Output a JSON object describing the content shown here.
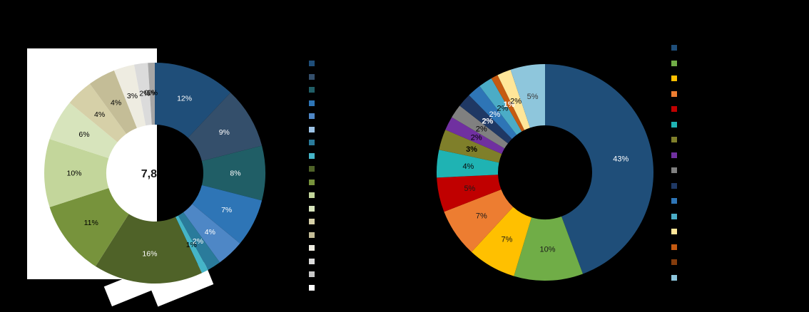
{
  "page": {
    "background": "#000000"
  },
  "chart_data": [
    {
      "type": "pie",
      "subtype": "donut",
      "unit": "percent",
      "values": [
        12,
        9,
        8,
        7,
        4,
        2,
        1,
        16,
        11,
        10,
        6,
        4,
        4,
        3,
        2,
        0,
        1
      ],
      "percent_labels": [
        "12%",
        "9%",
        "8%",
        "7%",
        "4%",
        "2%",
        "1%",
        "16%",
        "11%",
        "10%",
        "6%",
        "4%",
        "4%",
        "3%",
        "2%",
        "0%",
        "1%"
      ],
      "colors": [
        "#1F4E79",
        "#344F6B",
        "#205E66",
        "#2E75B6",
        "#4E87C6",
        "#2A7B9B",
        "#45B5C8",
        "#4F6228",
        "#77933C",
        "#C3D69B",
        "#D7E4BC",
        "#D6D0A8",
        "#C4BD97",
        "#EEECE1",
        "#DBDBDB",
        "#C9C9C9",
        "#A6A6A6"
      ],
      "label_colors": [
        "#FFFFFF",
        "#FFFFFF",
        "#FFFFFF",
        "#FFFFFF",
        "#FFFFFF",
        "#FFFFFF",
        "#000000",
        "#FFFFFF",
        "#000000",
        "#000000",
        "#000000",
        "#000000",
        "#000000",
        "#000000",
        "#000000",
        "#000000",
        "#000000"
      ],
      "label_bold": [
        false,
        false,
        false,
        false,
        false,
        false,
        false,
        false,
        false,
        false,
        false,
        false,
        false,
        false,
        false,
        false,
        false
      ],
      "center_label": "7,8",
      "legend_swatches": [
        "#1F4E79",
        "#344F6B",
        "#205E66",
        "#2E75B6",
        "#4E87C6",
        "#9DC3E6",
        "#2A7B9B",
        "#45B5C8",
        "#4F6228",
        "#77933C",
        "#C3D69B",
        "#D7E4BC",
        "#D6D0A8",
        "#C4BD97",
        "#EEECE1",
        "#DBDBDB",
        "#C9C9C9",
        "#FFFFFF"
      ],
      "legend_position": "right"
    },
    {
      "type": "pie",
      "subtype": "donut",
      "unit": "percent",
      "values": [
        43,
        10,
        7,
        7,
        5,
        4,
        3,
        2,
        2,
        2,
        2,
        2,
        1,
        2,
        5
      ],
      "percent_labels": [
        "43%",
        "10%",
        "7%",
        "7%",
        "5%",
        "4%",
        "3%",
        "2%",
        "2%",
        "2%",
        "2%",
        "2%",
        "1%",
        "2%",
        "5%"
      ],
      "colors": [
        "#1F4E79",
        "#70AD47",
        "#FFC000",
        "#ED7D31",
        "#C00000",
        "#1FB3B3",
        "#7F7F2A",
        "#7030A0",
        "#808080",
        "#1F3864",
        "#2E75B6",
        "#4BACC6",
        "#C55A11",
        "#FFE699",
        "#8EC6DC"
      ],
      "label_colors": [
        "#FFFFFF",
        "#1A1A1A",
        "#1A1A1A",
        "#1A1A1A",
        "#1A1A1A",
        "#0A0A0A",
        "#000000",
        "#000000",
        "#000000",
        "#FFFFFF",
        "#FFFFFF",
        "#000000",
        "#FFFFFF",
        "#000000",
        "#3A3A3A"
      ],
      "label_bold": [
        false,
        false,
        false,
        false,
        false,
        false,
        true,
        false,
        false,
        true,
        false,
        false,
        true,
        false,
        false
      ],
      "legend_swatches": [
        "#1F4E79",
        "#70AD47",
        "#FFC000",
        "#ED7D31",
        "#C00000",
        "#1FB3B3",
        "#7F7F2A",
        "#7030A0",
        "#808080",
        "#1F3864",
        "#2E75B6",
        "#4BACC6",
        "#FFE699",
        "#C55A11",
        "#843C0C",
        "#8EC6DC"
      ],
      "legend_position": "right"
    }
  ]
}
